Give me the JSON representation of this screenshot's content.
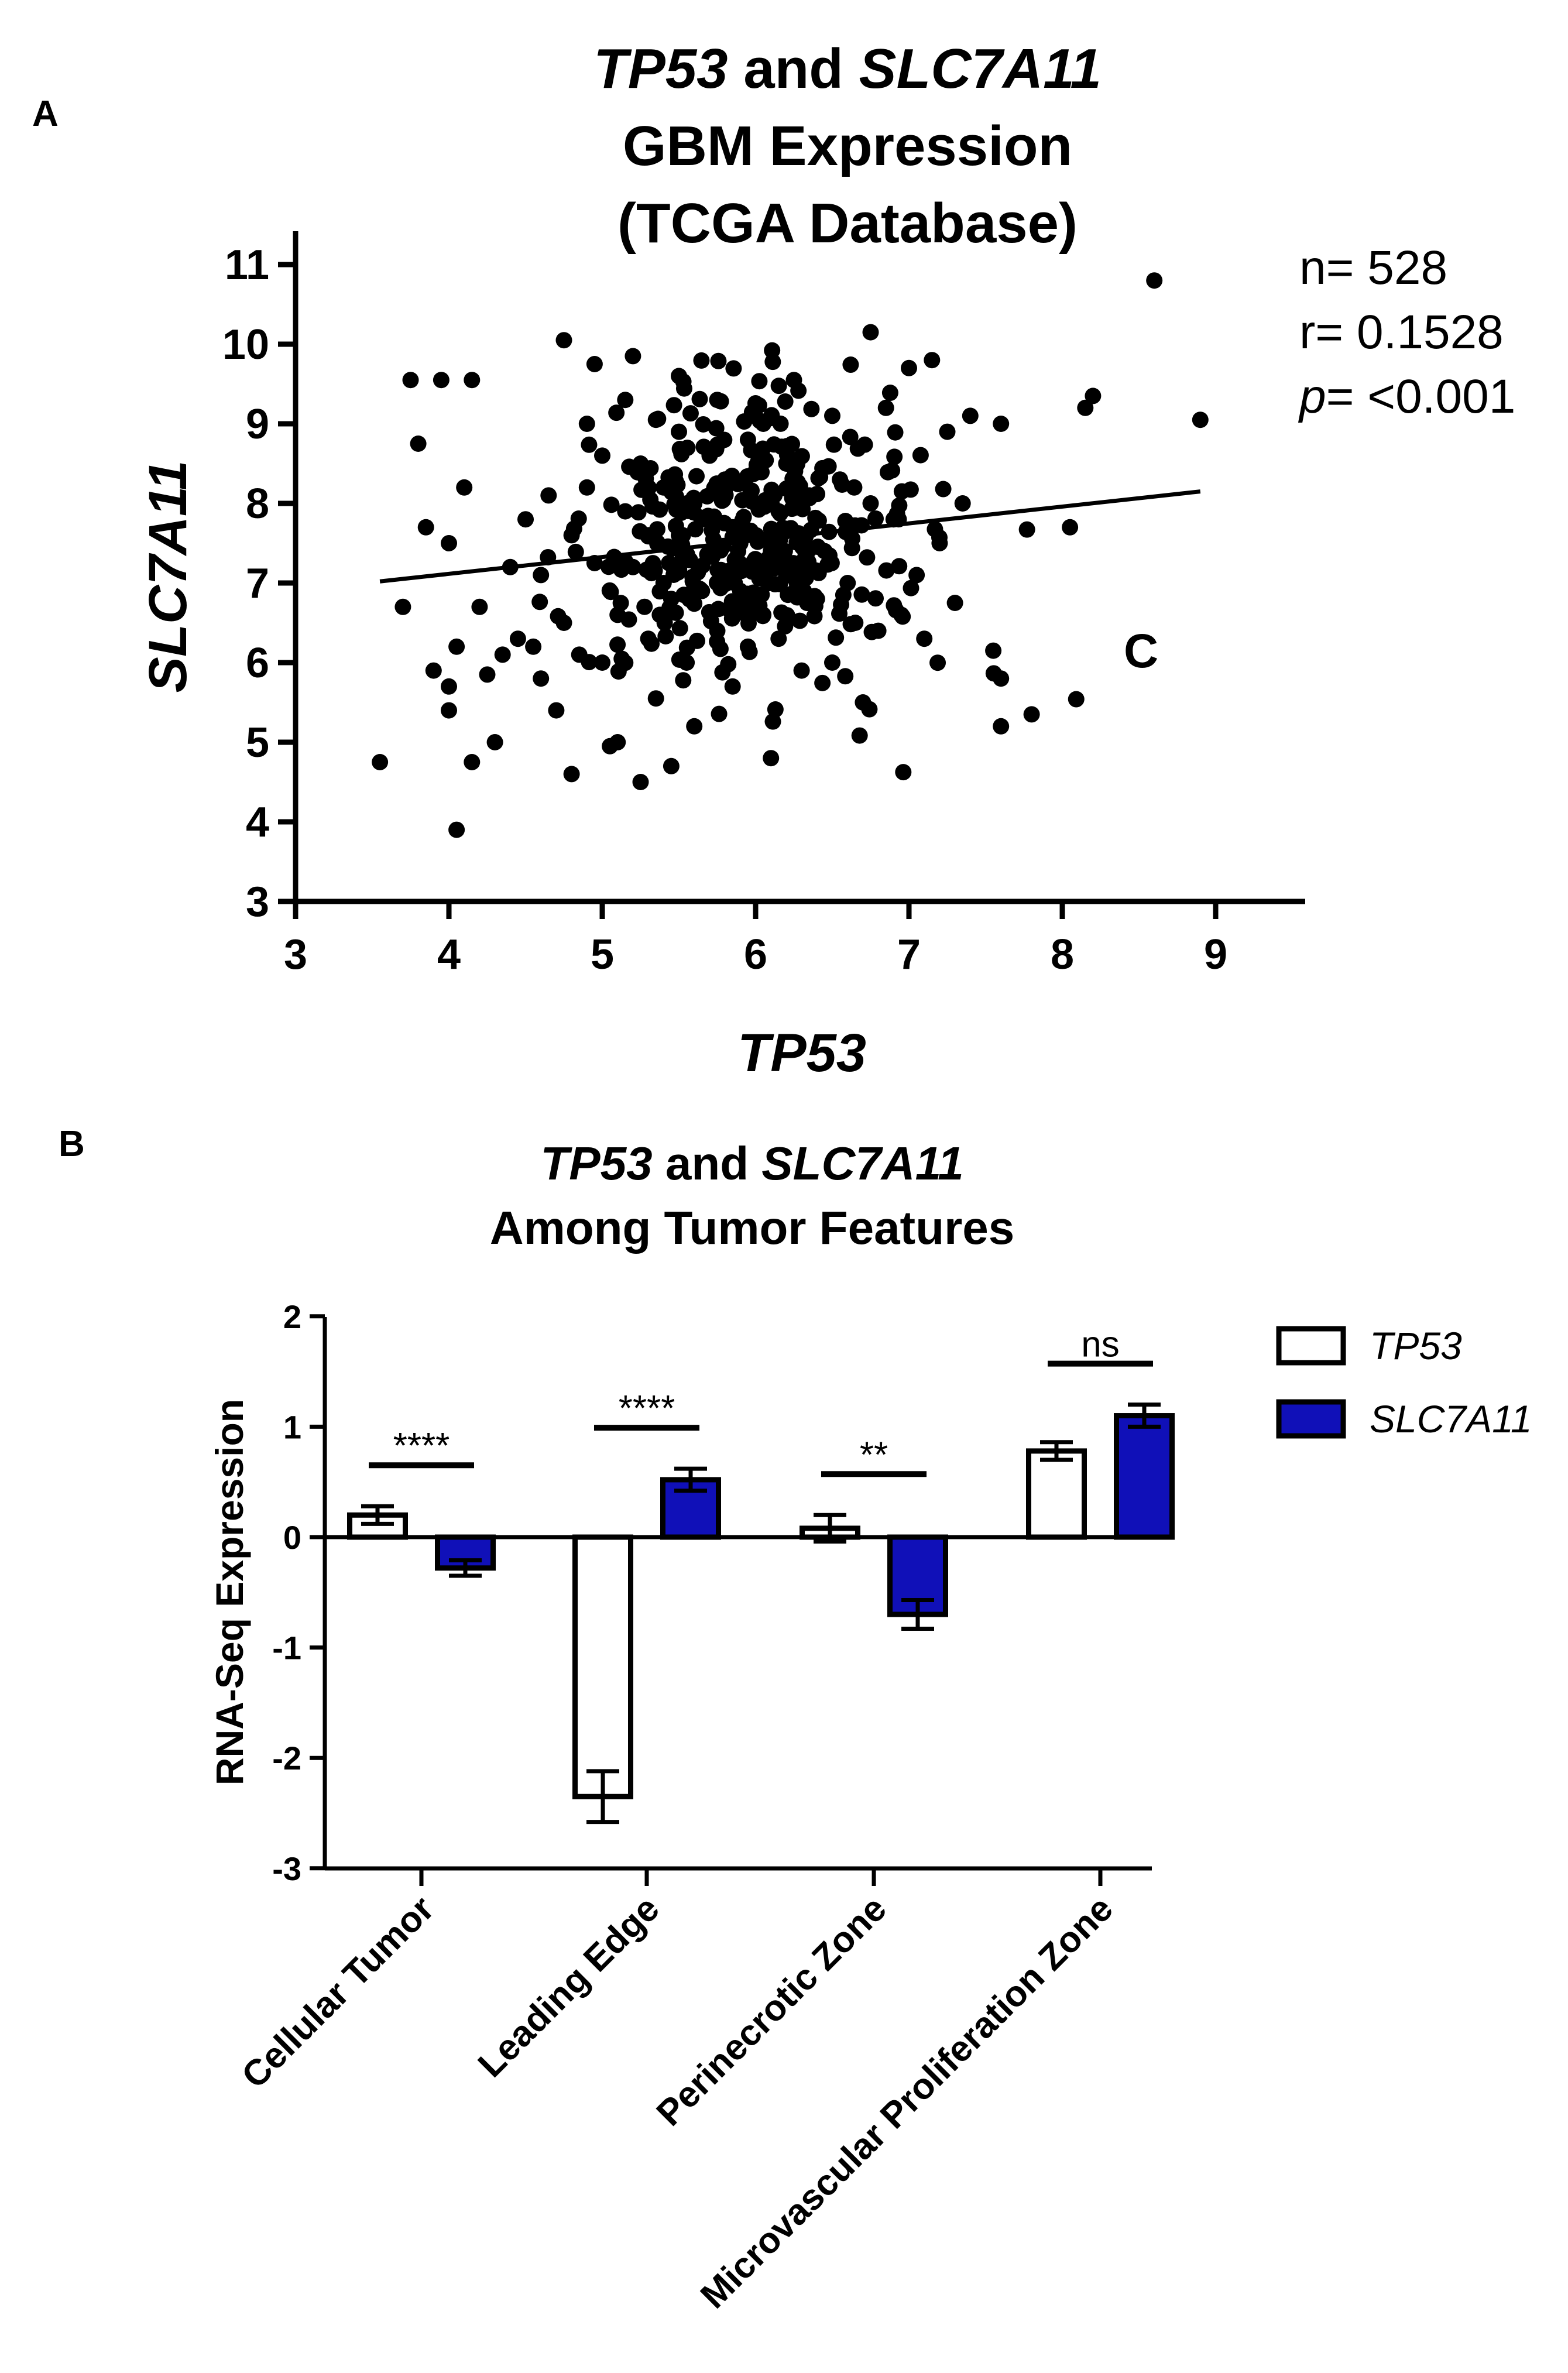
{
  "chart_data": [
    {
      "panel": "A",
      "type": "scatter",
      "title_parts": {
        "gene1": "TP53",
        "connector": " and ",
        "gene2": "SLC7A11",
        "line2": "GBM Expression",
        "line3": "(TCGA Database)"
      },
      "xlabel": "TP53",
      "ylabel": "SLC7A11",
      "xlim": [
        3,
        9.5
      ],
      "ylim": [
        3,
        11.2
      ],
      "xticks": [
        "3",
        "4",
        "5",
        "6",
        "7",
        "8",
        "9"
      ],
      "yticks": [
        "3",
        "4",
        "5",
        "6",
        "7",
        "8",
        "9",
        "10",
        "11"
      ],
      "stats": {
        "n": "n= 528",
        "r": "r= 0.1528",
        "p_symbol": "p",
        "p_value": "= <0.001"
      },
      "annotation": "C",
      "regression": {
        "x": [
          3.55,
          8.9
        ],
        "y": [
          7.02,
          8.15
        ]
      },
      "points": [
        [
          3.55,
          4.75
        ],
        [
          3.7,
          6.7
        ],
        [
          3.75,
          9.55
        ],
        [
          3.8,
          8.75
        ],
        [
          3.85,
          7.7
        ],
        [
          3.9,
          5.9
        ],
        [
          3.95,
          9.55
        ],
        [
          4.0,
          5.4
        ],
        [
          4.0,
          5.7
        ],
        [
          4.0,
          7.5
        ],
        [
          4.05,
          3.9
        ],
        [
          4.05,
          6.2
        ],
        [
          4.1,
          8.2
        ],
        [
          4.15,
          9.55
        ],
        [
          4.15,
          4.75
        ],
        [
          4.2,
          6.7
        ],
        [
          4.25,
          5.85
        ],
        [
          4.3,
          5.0
        ],
        [
          4.35,
          6.1
        ],
        [
          4.4,
          7.2
        ],
        [
          4.45,
          6.3
        ],
        [
          4.5,
          7.8
        ],
        [
          4.55,
          6.2
        ],
        [
          4.6,
          5.8
        ],
        [
          4.6,
          7.1
        ],
        [
          4.65,
          8.1
        ],
        [
          4.7,
          5.4
        ],
        [
          4.75,
          10.05
        ],
        [
          4.75,
          6.5
        ],
        [
          4.8,
          7.6
        ],
        [
          4.8,
          4.6
        ],
        [
          4.85,
          6.1
        ],
        [
          4.9,
          8.2
        ],
        [
          4.9,
          9.0
        ],
        [
          4.95,
          9.75
        ],
        [
          4.95,
          7.25
        ],
        [
          5.0,
          6.0
        ],
        [
          5.0,
          8.6
        ],
        [
          5.05,
          4.95
        ],
        [
          5.1,
          5.0
        ],
        [
          5.1,
          6.6
        ],
        [
          5.15,
          7.9
        ],
        [
          5.15,
          9.3
        ],
        [
          5.2,
          9.85
        ],
        [
          5.2,
          7.2
        ],
        [
          5.25,
          4.5
        ],
        [
          5.25,
          8.5
        ],
        [
          5.3,
          6.3
        ],
        [
          5.3,
          7.6
        ],
        [
          5.35,
          9.05
        ],
        [
          5.35,
          5.55
        ],
        [
          5.4,
          7.0
        ],
        [
          5.4,
          8.2
        ],
        [
          5.45,
          6.8
        ],
        [
          5.45,
          4.7
        ],
        [
          5.5,
          7.6
        ],
        [
          5.5,
          8.9
        ],
        [
          5.5,
          9.6
        ],
        [
          5.55,
          6.0
        ],
        [
          5.55,
          7.3
        ],
        [
          5.6,
          8.0
        ],
        [
          5.6,
          5.2
        ],
        [
          5.65,
          6.9
        ],
        [
          5.65,
          7.8
        ],
        [
          5.7,
          7.4
        ],
        [
          5.7,
          8.6
        ],
        [
          5.75,
          6.4
        ],
        [
          5.75,
          9.3
        ],
        [
          5.8,
          7.0
        ],
        [
          5.8,
          8.3
        ],
        [
          5.85,
          5.7
        ],
        [
          5.85,
          7.7
        ],
        [
          5.9,
          6.9
        ],
        [
          5.9,
          7.5
        ],
        [
          5.95,
          8.8
        ],
        [
          5.95,
          6.2
        ],
        [
          6.0,
          7.2
        ],
        [
          6.0,
          8.0
        ],
        [
          6.05,
          6.6
        ],
        [
          6.05,
          9.0
        ],
        [
          6.1,
          4.8
        ],
        [
          6.1,
          7.4
        ],
        [
          6.15,
          7.9
        ],
        [
          6.15,
          6.3
        ],
        [
          6.2,
          8.5
        ],
        [
          6.2,
          7.1
        ],
        [
          6.25,
          9.55
        ],
        [
          6.3,
          5.9
        ],
        [
          6.3,
          7.6
        ],
        [
          6.35,
          8.1
        ],
        [
          6.4,
          6.8
        ],
        [
          6.45,
          7.4
        ],
        [
          6.5,
          9.1
        ],
        [
          6.5,
          6.0
        ],
        [
          6.55,
          8.3
        ],
        [
          6.6,
          7.0
        ],
        [
          6.65,
          6.5
        ],
        [
          6.7,
          5.5
        ],
        [
          6.75,
          8.0
        ],
        [
          6.75,
          10.15
        ],
        [
          6.8,
          6.4
        ],
        [
          6.85,
          9.2
        ],
        [
          6.9,
          7.8
        ],
        [
          6.95,
          6.6
        ],
        [
          7.0,
          9.7
        ],
        [
          7.05,
          7.1
        ],
        [
          7.1,
          6.3
        ],
        [
          7.15,
          9.8
        ],
        [
          7.2,
          7.5
        ],
        [
          7.25,
          8.9
        ],
        [
          7.3,
          6.75
        ],
        [
          7.35,
          8.0
        ],
        [
          7.4,
          9.1
        ],
        [
          7.55,
          6.15
        ],
        [
          7.6,
          5.2
        ],
        [
          7.6,
          5.8
        ],
        [
          7.6,
          9.0
        ],
        [
          7.8,
          5.35
        ],
        [
          8.05,
          7.7
        ],
        [
          8.15,
          9.2
        ],
        [
          8.2,
          9.35
        ],
        [
          8.6,
          10.8
        ],
        [
          8.9,
          9.05
        ]
      ]
    },
    {
      "panel": "B",
      "type": "bar",
      "title_parts": {
        "gene1": "TP53",
        "connector": " and ",
        "gene2": "SLC7A11",
        "line2": "Among Tumor Features"
      },
      "ylabel": "RNA-Seq Expression",
      "ylim": [
        -3,
        2
      ],
      "yticks": [
        "2",
        "1",
        "0",
        "-1",
        "-2",
        "-3"
      ],
      "categories": [
        "Cellular Tumor",
        "Leading Edge",
        "Perinecrotic Zone",
        "Microvascular Proliferation Zone"
      ],
      "series": [
        {
          "name": "TP53",
          "fill": "#ffffff",
          "values": [
            0.2,
            -2.35,
            0.08,
            0.78
          ],
          "errors": [
            0.08,
            0.23,
            0.12,
            0.08
          ]
        },
        {
          "name": "SLC7A11",
          "fill": "#1010b8",
          "values": [
            -0.28,
            0.52,
            -0.7,
            1.1
          ],
          "errors": [
            0.07,
            0.1,
            0.13,
            0.1
          ]
        }
      ],
      "significance": [
        "****",
        "****",
        "**",
        "ns"
      ],
      "legend_position": "right"
    }
  ]
}
